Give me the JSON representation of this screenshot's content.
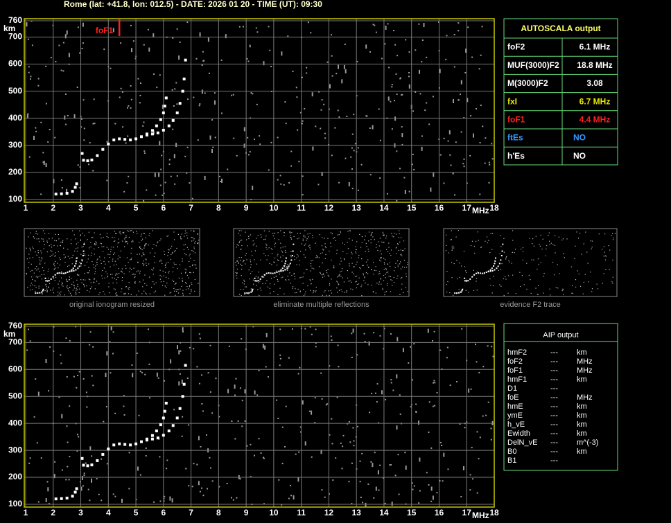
{
  "header": "Rome (lat: +41.8, lon: 012.5) - DATE: 2026 01 20 - TIME (UT): 09:30",
  "chart_data": [
    {
      "type": "scatter",
      "x_label": "MHz",
      "y_label": "km",
      "xlim": [
        1,
        18
      ],
      "ylim": [
        100,
        760
      ],
      "xticks": [
        1,
        2,
        3,
        4,
        5,
        6,
        7,
        8,
        9,
        10,
        11,
        12,
        13,
        14,
        15,
        16,
        17,
        18
      ],
      "yticks": [
        100,
        200,
        300,
        400,
        500,
        600,
        700,
        760
      ],
      "grid": true,
      "annotations": [
        {
          "label": "foF1",
          "x": 4.4,
          "color": "#ff2020"
        }
      ],
      "series": [
        {
          "color": "#ffffff",
          "x": [
            2.1,
            2.3,
            2.5,
            2.7,
            2.8,
            2.85
          ],
          "values": [
            120,
            121,
            123,
            130,
            145,
            158
          ]
        },
        {
          "color": "#ffffff",
          "x": [
            3.05,
            3.1,
            3.25,
            3.4,
            3.6,
            3.8,
            4.0,
            4.2,
            4.4,
            4.6,
            4.8,
            5.0,
            5.2,
            5.4,
            5.6,
            5.75,
            5.9,
            6.0,
            6.05,
            6.1
          ],
          "values": [
            270,
            245,
            243,
            246,
            262,
            285,
            305,
            320,
            324,
            322,
            320,
            324,
            332,
            342,
            355,
            372,
            395,
            420,
            445,
            475
          ]
        },
        {
          "color": "#ffffff",
          "x": [
            5.4,
            5.6,
            5.8,
            6.0,
            6.2,
            6.35,
            6.5,
            6.6,
            6.7,
            6.75,
            6.8
          ],
          "values": [
            338,
            342,
            346,
            356,
            372,
            392,
            420,
            455,
            500,
            545,
            615
          ]
        }
      ]
    },
    {
      "type": "scatter",
      "x_label": "MHz",
      "y_label": "km",
      "xlim": [
        1,
        18
      ],
      "ylim": [
        100,
        760
      ],
      "xticks": [
        1,
        2,
        3,
        4,
        5,
        6,
        7,
        8,
        9,
        10,
        11,
        12,
        13,
        14,
        15,
        16,
        17,
        18
      ],
      "yticks": [
        100,
        200,
        300,
        400,
        500,
        600,
        700,
        760
      ],
      "grid": true,
      "series": [
        {
          "color": "#ffffff",
          "x": [
            2.1,
            2.3,
            2.5,
            2.7,
            2.8,
            2.85
          ],
          "values": [
            120,
            121,
            123,
            130,
            145,
            158
          ]
        },
        {
          "color": "#ffffff",
          "x": [
            3.05,
            3.1,
            3.25,
            3.4,
            3.6,
            3.8,
            4.0,
            4.2,
            4.4,
            4.6,
            4.8,
            5.0,
            5.2,
            5.4,
            5.6,
            5.75,
            5.9,
            6.0,
            6.05,
            6.1
          ],
          "values": [
            270,
            245,
            243,
            246,
            262,
            285,
            305,
            320,
            324,
            322,
            320,
            324,
            332,
            342,
            355,
            372,
            395,
            420,
            445,
            475
          ]
        },
        {
          "color": "#ffffff",
          "x": [
            5.4,
            5.6,
            5.8,
            6.0,
            6.2,
            6.35,
            6.5,
            6.6,
            6.7,
            6.75,
            6.8
          ],
          "values": [
            338,
            342,
            346,
            356,
            372,
            392,
            420,
            455,
            500,
            545,
            615
          ]
        }
      ]
    }
  ],
  "thumbnails": [
    "original ionogram resized",
    "eliminate multiple reflections",
    "evidence F2 trace"
  ],
  "autoscala": {
    "title": "AUTOSCALA output",
    "rows": [
      {
        "label": "foF2",
        "value": "6.1 MHz",
        "color": "#ffffff"
      },
      {
        "label": "MUF(3000)F2",
        "value": "18.8 MHz",
        "color": "#ffffff"
      },
      {
        "label": "M(3000)F2",
        "value": "3.08",
        "color": "#ffffff"
      },
      {
        "label": "fxI",
        "value": "6.7 MHz",
        "color": "#e8e800"
      },
      {
        "label": "foF1",
        "value": "4.4 MHz",
        "color": "#ff2020"
      },
      {
        "label": "ftEs",
        "value": "NO",
        "color": "#3399ff"
      },
      {
        "label": "h'Es",
        "value": "NO",
        "color": "#ffffff"
      }
    ]
  },
  "aip": {
    "title": "AIP output",
    "rows": [
      [
        "hmF2",
        "---",
        "km"
      ],
      [
        "foF2",
        "---",
        "MHz"
      ],
      [
        "foF1",
        "---",
        "MHz"
      ],
      [
        "hmF1",
        "---",
        "km"
      ],
      [
        "D1",
        "---",
        null
      ],
      [
        "foE",
        "---",
        "MHz"
      ],
      [
        "hmE",
        "---",
        "km"
      ],
      [
        "ymE",
        "---",
        "km"
      ],
      [
        "h_vE",
        "---",
        "km"
      ],
      [
        "Ewidth",
        "---",
        "km"
      ],
      [
        "DelN_vE",
        "---",
        "m^(-3)"
      ],
      [
        "B0",
        "---",
        "km"
      ],
      [
        "B1",
        "---",
        null
      ]
    ]
  }
}
